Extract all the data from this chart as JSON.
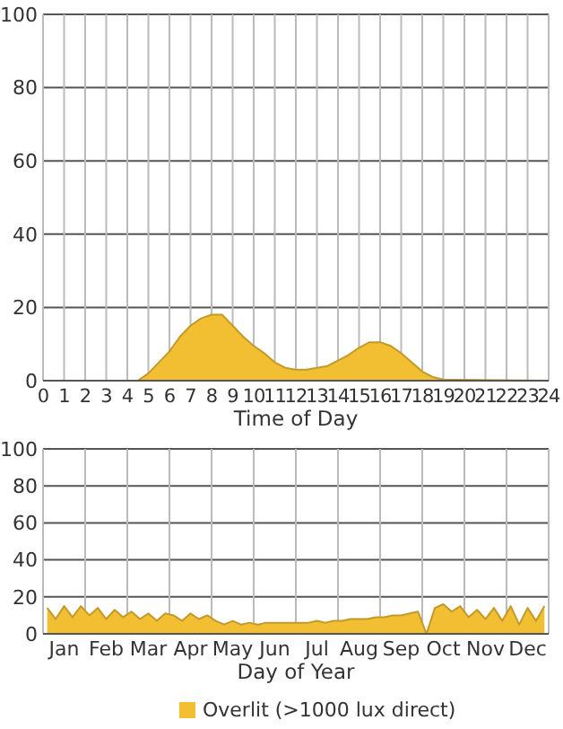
{
  "chart_data": [
    {
      "type": "area",
      "xlabel": "Time of Day",
      "xlim": [
        0,
        24
      ],
      "xticks": [
        0,
        1,
        2,
        3,
        4,
        5,
        6,
        7,
        8,
        9,
        10,
        11,
        12,
        13,
        14,
        15,
        16,
        17,
        18,
        19,
        20,
        21,
        22,
        23,
        24
      ],
      "ylim": [
        0,
        100
      ],
      "yticks": [
        0,
        20,
        40,
        60,
        80,
        100
      ],
      "grid": true,
      "legend": false,
      "series": [
        {
          "color": "#f2bf33",
          "x": [
            0,
            4.5,
            5,
            5.5,
            6,
            6.5,
            7,
            7.5,
            8,
            8.5,
            9,
            9.5,
            10,
            10.5,
            11,
            11.5,
            12,
            12.5,
            13,
            13.5,
            14,
            14.5,
            15,
            15.5,
            16,
            16.5,
            17,
            17.5,
            18,
            18.5,
            19,
            24
          ],
          "values": [
            0,
            0,
            2,
            5,
            8,
            12,
            15,
            17,
            18,
            18,
            15,
            12,
            9.5,
            7.5,
            5,
            3.5,
            3,
            3,
            3.5,
            4,
            5.5,
            7,
            9,
            10.5,
            10.5,
            9.5,
            7.5,
            5,
            2.5,
            1,
            0.3,
            0
          ]
        }
      ]
    },
    {
      "type": "area",
      "xlabel": "Day of Year",
      "categories": [
        null,
        null,
        "Jan",
        null,
        null,
        null,
        null,
        "Feb",
        null,
        null,
        null,
        null,
        "Mar",
        null,
        null,
        null,
        null,
        "Apr",
        null,
        null,
        null,
        null,
        "May",
        null,
        null,
        null,
        null,
        "Jun",
        null,
        null,
        null,
        null,
        "Jul",
        null,
        null,
        null,
        null,
        "Aug",
        null,
        null,
        null,
        null,
        "Sep",
        null,
        null,
        null,
        null,
        "Oct",
        null,
        null,
        null,
        null,
        "Nov",
        null,
        null,
        null,
        null,
        "Dec",
        null,
        null
      ],
      "ylim": [
        0,
        100
      ],
      "yticks": [
        0,
        20,
        40,
        60,
        80,
        100
      ],
      "grid": true,
      "legend": "bottom",
      "series": [
        {
          "name": "Overlit (>1000 lux direct)",
          "color": "#f2bf33",
          "values": [
            14,
            8,
            15,
            9,
            15,
            10,
            14,
            8,
            13,
            9,
            12,
            8,
            11,
            7,
            11,
            10,
            7,
            11,
            8,
            10,
            7,
            5,
            7,
            5,
            6,
            5,
            6,
            6,
            6,
            6,
            6,
            6,
            7,
            6,
            7,
            7,
            8,
            8,
            8,
            9,
            9,
            10,
            10,
            11,
            12,
            0,
            14,
            16,
            12,
            15,
            9,
            13,
            8,
            14,
            7,
            15,
            5,
            14,
            7,
            15
          ]
        }
      ]
    }
  ]
}
